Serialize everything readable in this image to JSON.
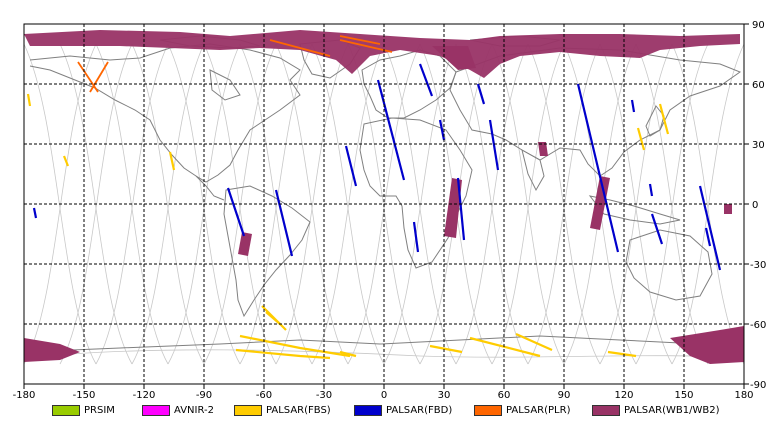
{
  "map": {
    "lon_ticks": [
      "-180",
      "-150",
      "-120",
      "-90",
      "-60",
      "-30",
      "0",
      "30",
      "60",
      "90",
      "120",
      "150",
      "180"
    ],
    "lat_ticks": [
      "90",
      "60",
      "30",
      "0",
      "-30",
      "-60",
      "-90"
    ],
    "colors": {
      "background": "#ffffff",
      "grid": "#000000",
      "coastline": "#808080",
      "orbit": "#c8c8c8"
    }
  },
  "legend": [
    {
      "label": "PRSIM",
      "color": "#99cc00"
    },
    {
      "label": "AVNIR-2",
      "color": "#ff00ff"
    },
    {
      "label": "PALSAR(FBS)",
      "color": "#ffcc00"
    },
    {
      "label": "PALSAR(FBD)",
      "color": "#0000cc"
    },
    {
      "label": "PALSAR(PLR)",
      "color": "#ff6600"
    },
    {
      "label": "PALSAR(WB1/WB2)",
      "color": "#993366"
    }
  ]
}
